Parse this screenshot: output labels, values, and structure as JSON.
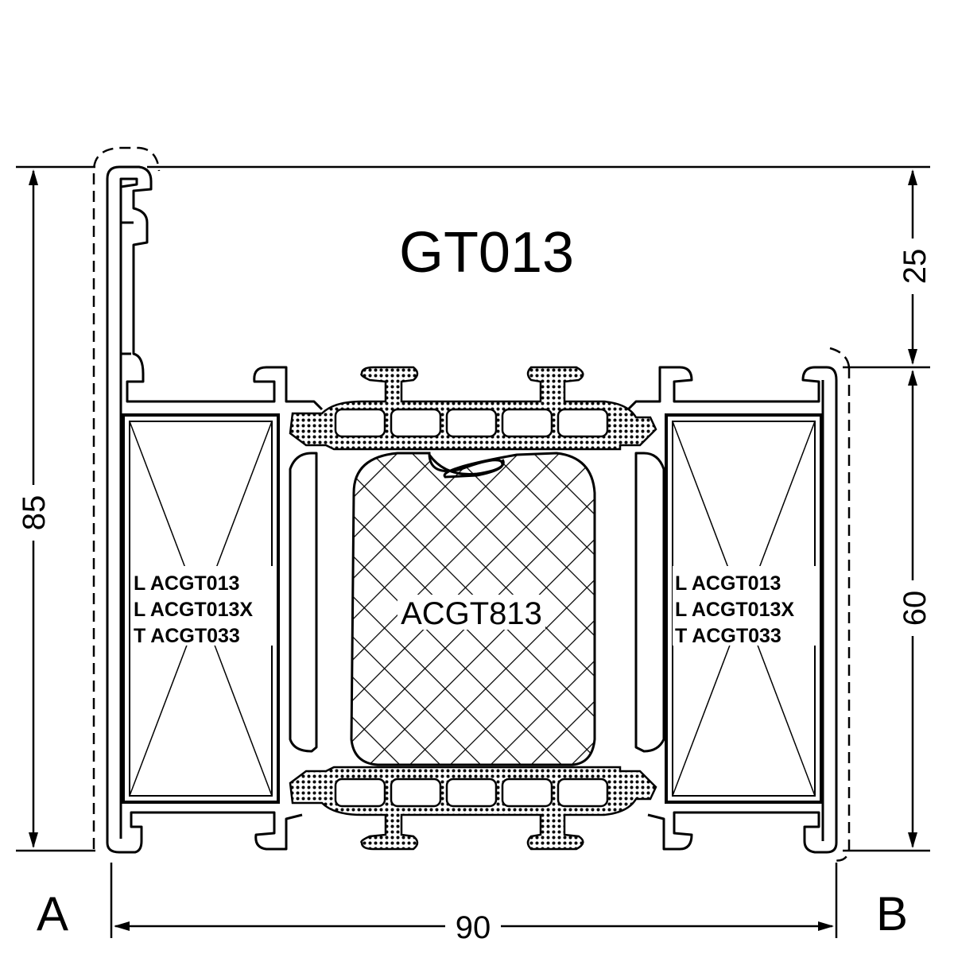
{
  "title": "GT013",
  "dimensions": {
    "overall_height": "85",
    "top_height": "25",
    "lower_height": "60",
    "width": "90"
  },
  "side_labels": {
    "left": "A",
    "right": "B"
  },
  "reinforcement_left": [
    "L ACGT013",
    "L ACGT013X",
    "T ACGT033"
  ],
  "reinforcement_right": [
    "L ACGT013",
    "L ACGT013X",
    "T ACGT033"
  ],
  "center_insert": "ACGT813",
  "colors": {
    "line": "#000000",
    "background": "#ffffff"
  }
}
